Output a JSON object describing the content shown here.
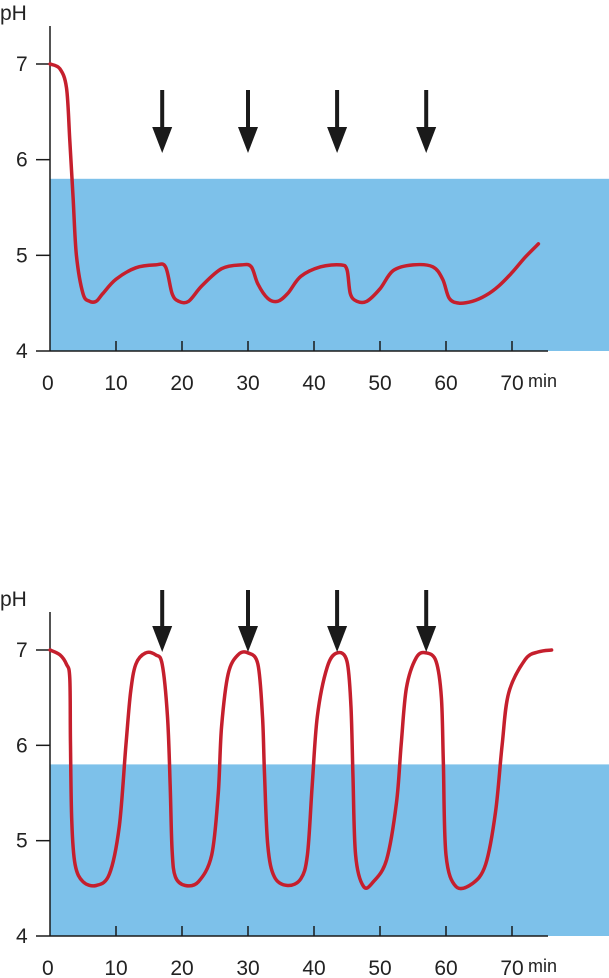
{
  "colors": {
    "zone": "#7dc1ea",
    "curve": "#c51f2d",
    "axis": "#1a1a1a",
    "arrow": "#1a1a1a"
  },
  "chart_data": [
    {
      "type": "line",
      "ylabel": "pH",
      "xunit": "min",
      "xlim": [
        0,
        78
      ],
      "ylim": [
        4,
        7.4
      ],
      "x_ticks": [
        "0",
        "10",
        "20",
        "30",
        "40",
        "50",
        "60",
        "70"
      ],
      "y_ticks": [
        "4",
        "5",
        "6",
        "7"
      ],
      "shaded_band": {
        "from": 4,
        "to": 5.8
      },
      "arrows_at_min": [
        17,
        30,
        43.5,
        57
      ],
      "series": [
        {
          "x": [
            0,
            1.5,
            2.5,
            3,
            3.5,
            4,
            5,
            6,
            7,
            8,
            10,
            13,
            16,
            17.5,
            18.5,
            19.5,
            21,
            23,
            26,
            29,
            30.5,
            31.5,
            33,
            34.5,
            36,
            38,
            41,
            44,
            45,
            45.5,
            46.5,
            48,
            50,
            52,
            55,
            58,
            59.5,
            60.5,
            62,
            64,
            66,
            68,
            70,
            72,
            74
          ],
          "y": [
            7.0,
            6.95,
            6.75,
            6.2,
            5.6,
            5.0,
            4.6,
            4.52,
            4.52,
            4.6,
            4.75,
            4.87,
            4.9,
            4.88,
            4.6,
            4.52,
            4.52,
            4.68,
            4.86,
            4.9,
            4.88,
            4.7,
            4.55,
            4.52,
            4.6,
            4.78,
            4.88,
            4.9,
            4.85,
            4.6,
            4.52,
            4.52,
            4.65,
            4.84,
            4.9,
            4.88,
            4.75,
            4.55,
            4.5,
            4.52,
            4.58,
            4.68,
            4.82,
            4.98,
            5.12
          ]
        }
      ]
    },
    {
      "type": "line",
      "ylabel": "pH",
      "xunit": "min",
      "xlim": [
        0,
        78
      ],
      "ylim": [
        4,
        7.4
      ],
      "x_ticks": [
        "0",
        "10",
        "20",
        "30",
        "40",
        "50",
        "60",
        "70"
      ],
      "y_ticks": [
        "4",
        "5",
        "6",
        "7"
      ],
      "shaded_band": {
        "from": 4,
        "to": 5.8
      },
      "arrows_at_min": [
        17,
        30,
        43.5,
        57
      ],
      "series": [
        {
          "x": [
            0,
            1.5,
            2.5,
            3,
            3.1,
            3.3,
            3.8,
            5,
            7,
            9,
            10.5,
            11.5,
            12.2,
            13,
            14.5,
            16,
            17,
            17.8,
            18.2,
            18.5,
            19,
            20.5,
            22.5,
            24.5,
            25.5,
            26,
            27,
            28.5,
            30,
            31.5,
            32.2,
            32.5,
            33,
            34,
            36,
            38,
            39,
            39.7,
            40.5,
            42,
            43.5,
            45,
            45.6,
            45.9,
            46.3,
            47.5,
            49,
            51,
            52.5,
            53.2,
            54,
            55.5,
            57,
            58.5,
            59.3,
            59.6,
            60,
            61.5,
            64,
            66,
            67.5,
            68.5,
            69.5,
            72,
            74,
            76
          ],
          "y": [
            7.0,
            6.95,
            6.85,
            6.7,
            6.0,
            5.2,
            4.75,
            4.57,
            4.53,
            4.65,
            5.15,
            6.0,
            6.55,
            6.85,
            6.97,
            6.95,
            6.85,
            6.3,
            5.6,
            4.9,
            4.62,
            4.53,
            4.57,
            4.85,
            5.5,
            6.2,
            6.75,
            6.95,
            6.97,
            6.85,
            6.3,
            5.7,
            4.95,
            4.62,
            4.53,
            4.6,
            4.85,
            5.55,
            6.3,
            6.82,
            6.97,
            6.88,
            6.4,
            5.7,
            4.85,
            4.52,
            4.57,
            4.8,
            5.4,
            6.0,
            6.6,
            6.92,
            6.97,
            6.88,
            6.5,
            5.8,
            4.85,
            4.52,
            4.55,
            4.75,
            5.3,
            6.0,
            6.55,
            6.9,
            6.98,
            7.0
          ]
        }
      ]
    }
  ]
}
